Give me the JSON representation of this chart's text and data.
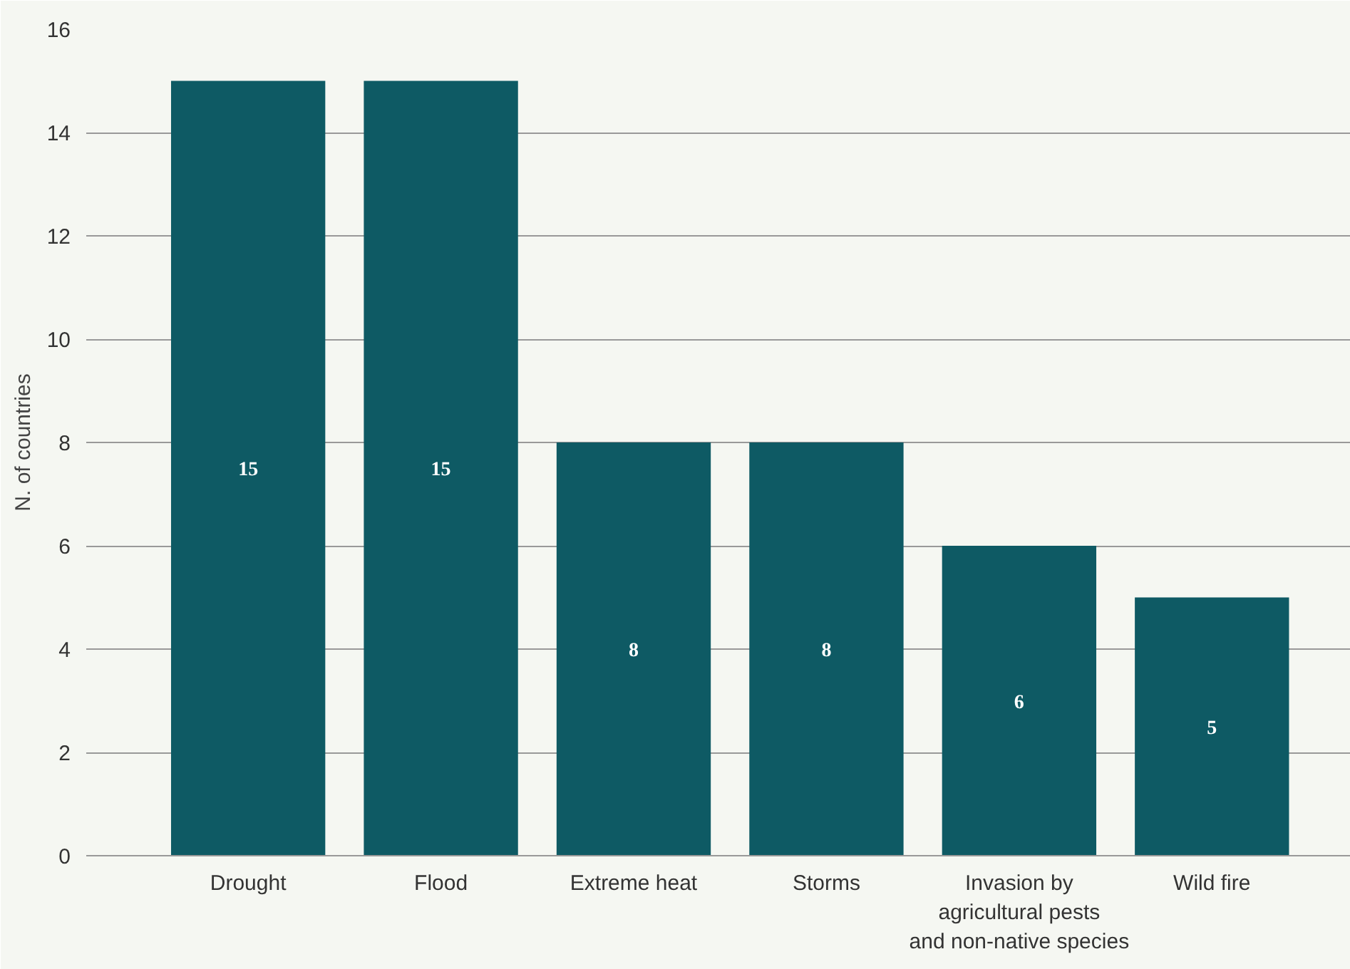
{
  "chart_data": {
    "type": "bar",
    "ylabel": "N. of countries",
    "categories": [
      "Drought",
      "Flood",
      "Extreme heat",
      "Storms",
      "Invasion by\nagricultural pests\nand non-native species",
      "Wild fire"
    ],
    "values": [
      15,
      15,
      8,
      8,
      6,
      5
    ],
    "color": "#0e5a64",
    "ylim": [
      0,
      16
    ],
    "yticks": [
      0,
      2,
      4,
      6,
      8,
      10,
      12,
      14,
      16
    ],
    "grid": "y",
    "data_labels": true
  }
}
